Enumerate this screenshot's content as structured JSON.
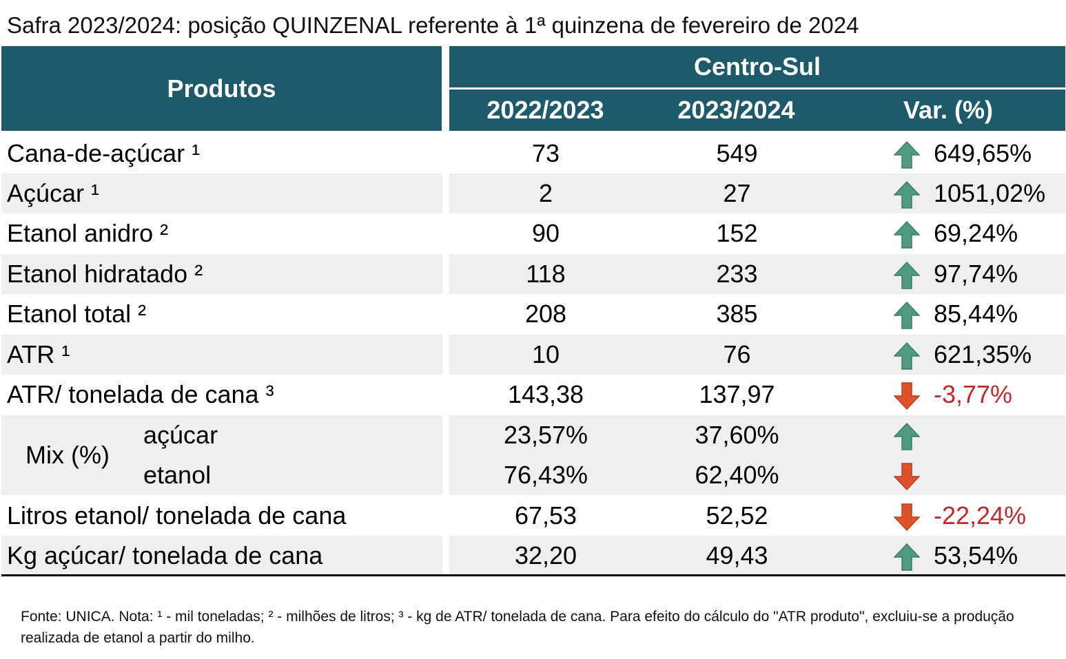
{
  "title": "Safra 2023/2024: posição QUINZENAL referente à 1ª quinzena de fevereiro de 2024",
  "header": {
    "produtos": "Produtos",
    "region": "Centro-Sul",
    "col_a": "2022/2023",
    "col_b": "2023/2024",
    "col_var": "Var. (%)"
  },
  "colors": {
    "header_bg": "#1e5a6a",
    "up_arrow": "#4f9a80",
    "down_arrow": "#e0522a",
    "negative_text": "#c0282e",
    "stripe": "#efefef"
  },
  "rows": [
    {
      "product": "Cana-de-açúcar ¹",
      "a": "73",
      "b": "549",
      "trend": "up-arrow-icon",
      "var": "649,65%"
    },
    {
      "product": "Açúcar ¹",
      "a": "2",
      "b": "27",
      "trend": "up-arrow-icon",
      "var": "1051,02%"
    },
    {
      "product": "Etanol anidro ²",
      "a": "90",
      "b": "152",
      "trend": "up-arrow-icon",
      "var": "69,24%"
    },
    {
      "product": "Etanol hidratado ²",
      "a": "118",
      "b": "233",
      "trend": "up-arrow-icon",
      "var": "97,74%"
    },
    {
      "product": "Etanol total ²",
      "a": "208",
      "b": "385",
      "trend": "up-arrow-icon",
      "var": "85,44%"
    },
    {
      "product": "ATR ¹",
      "a": "10",
      "b": "76",
      "trend": "up-arrow-icon",
      "var": "621,35%"
    },
    {
      "product": "ATR/ tonelada de cana ³",
      "a": "143,38",
      "b": "137,97",
      "trend": "down-arrow-icon",
      "var": "-3,77%"
    }
  ],
  "mix": {
    "label": "Mix (%)",
    "acucar": {
      "label": "açúcar",
      "a": "23,57%",
      "b": "37,60%",
      "trend": "up-arrow-icon"
    },
    "etanol": {
      "label": "etanol",
      "a": "76,43%",
      "b": "62,40%",
      "trend": "down-arrow-icon"
    }
  },
  "rows2": [
    {
      "product": "Litros etanol/ tonelada de cana",
      "a": "67,53",
      "b": "52,52",
      "trend": "down-arrow-icon",
      "var": "-22,24%"
    },
    {
      "product": "Kg açúcar/ tonelada de cana",
      "a": "32,20",
      "b": "49,43",
      "trend": "up-arrow-icon",
      "var": "53,54%"
    }
  ],
  "footnote": "Fonte: UNICA. Nota: ¹ - mil toneladas; ² - milhões de litros; ³ - kg de ATR/ tonelada de cana. Para efeito do cálculo do \"ATR produto\", excluiu-se a produção realizada de etanol a partir do milho."
}
